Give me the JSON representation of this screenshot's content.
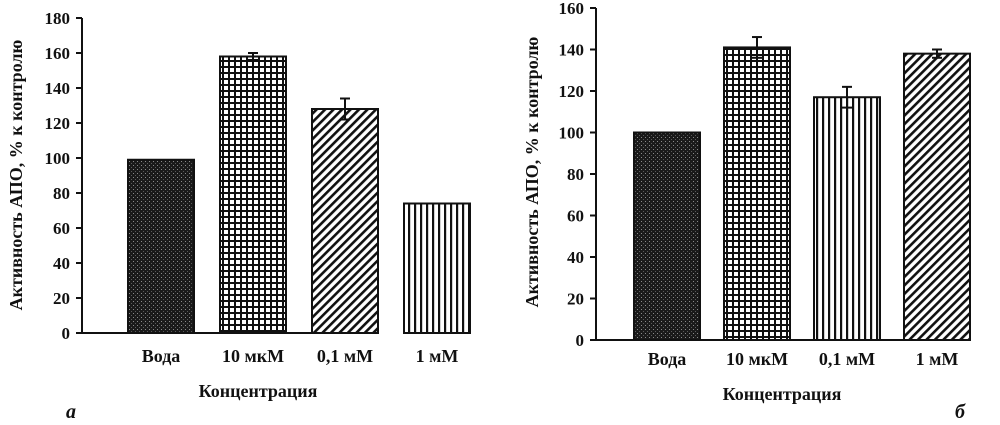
{
  "chart_data": [
    {
      "type": "bar",
      "panel_label": "а",
      "categories": [
        "Вода",
        "10 мкМ",
        "0,1 мМ",
        "1 мМ"
      ],
      "values": [
        99,
        158,
        128,
        74
      ],
      "errors": [
        0,
        2,
        6,
        0
      ],
      "patterns": [
        "dense-dots",
        "grid",
        "diagonal-hatch",
        "vertical-lines"
      ],
      "xlabel": "Концентрация",
      "ylabel": "Активность АПО, % к контролю",
      "ylim": [
        0,
        180
      ],
      "yticks": [
        0,
        20,
        40,
        60,
        80,
        100,
        120,
        140,
        160,
        180
      ],
      "ytick_labels": [
        "0",
        "20",
        "40",
        "60",
        "80",
        "100",
        "120",
        "140",
        "160",
        "180"
      ],
      "grid": false,
      "legend": "none"
    },
    {
      "type": "bar",
      "panel_label": "б",
      "categories": [
        "Вода",
        "10 мкМ",
        "0,1 мМ",
        "1 мМ"
      ],
      "values": [
        100,
        141,
        117,
        138
      ],
      "errors": [
        0,
        5,
        5,
        2
      ],
      "patterns": [
        "dense-dots",
        "grid",
        "vertical-lines",
        "diagonal-hatch"
      ],
      "xlabel": "Концентрация",
      "ylabel": "Активность АПО, % к контролю",
      "ylim": [
        0,
        160
      ],
      "yticks": [
        0,
        20,
        40,
        60,
        80,
        100,
        120,
        140,
        160
      ],
      "ytick_labels": [
        "0",
        "20",
        "40",
        "60",
        "80",
        "100",
        "120",
        "140",
        "160"
      ],
      "grid": false,
      "legend": "none"
    }
  ],
  "colors": {
    "ink": "#111111",
    "background": "#ffffff"
  }
}
